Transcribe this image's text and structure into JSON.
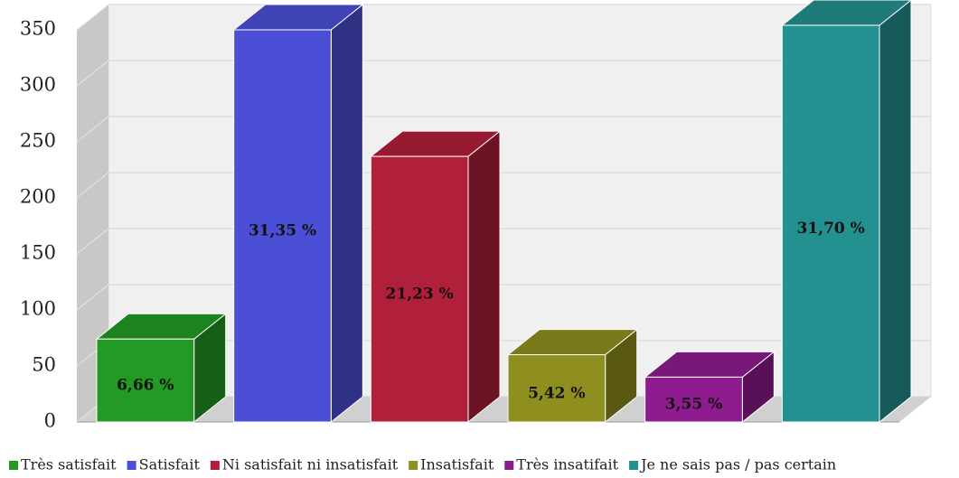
{
  "chart_data": {
    "type": "bar3d",
    "categories": [
      "Très satisfait",
      "Satisfait",
      "Ni satisfait ni insatisfait",
      "Insatisfait",
      "Très insatifait",
      "Je ne sais pas / pas certain"
    ],
    "series": [
      {
        "name": "Très satisfait",
        "color": "#239a23",
        "values": [
          74,
          null,
          null,
          null,
          null,
          null
        ]
      },
      {
        "name": "Satisfait",
        "color": "#4b4fd6",
        "values": [
          null,
          350,
          null,
          null,
          null,
          null
        ]
      },
      {
        "name": "Ni satisfait ni insatisfait",
        "color": "#b0203a",
        "values": [
          null,
          null,
          237,
          null,
          null,
          null
        ]
      },
      {
        "name": "Insatisfait",
        "color": "#8f8f1f",
        "values": [
          null,
          null,
          null,
          60,
          null,
          null
        ]
      },
      {
        "name": "Très insatifait",
        "color": "#8e1c8e",
        "values": [
          null,
          null,
          null,
          null,
          40,
          null
        ]
      },
      {
        "name": "Je ne sais pas / pas certain",
        "color": "#23918f",
        "values": [
          null,
          null,
          null,
          null,
          null,
          354
        ]
      }
    ],
    "data_labels": [
      "6,66 %",
      "31,35 %",
      "21,23 %",
      "5,42 %",
      "3,55 %",
      "31,70 %"
    ],
    "ylim": [
      0,
      350
    ],
    "yticks": [
      0,
      50,
      100,
      150,
      200,
      250,
      300,
      350
    ],
    "grid": true,
    "legend": "bottom"
  }
}
